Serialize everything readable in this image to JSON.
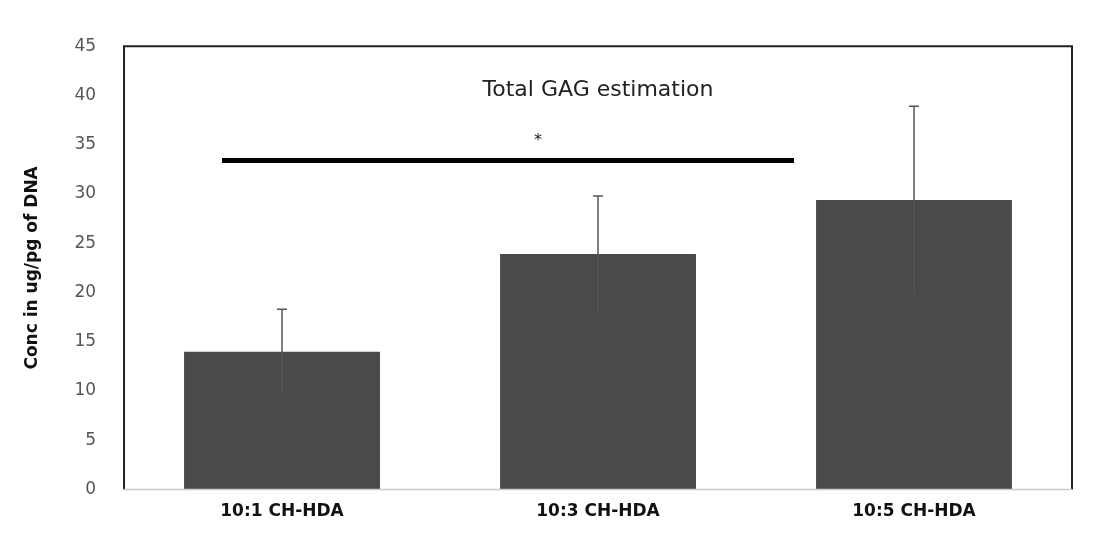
{
  "chart_data": {
    "type": "bar",
    "title": "Total GAG estimation",
    "ylabel": "Conc in ug/pg of DNA",
    "categories": [
      "10:1 CH-HDA",
      "10:3 CH-HDA",
      "10:5 CH-HDA"
    ],
    "values": [
      14.0,
      23.9,
      29.4
    ],
    "errors": [
      4.3,
      5.9,
      9.5
    ],
    "color": "#4a4a4a",
    "ylim": [
      0,
      45
    ],
    "yticks": [
      0,
      5,
      10,
      15,
      20,
      25,
      30,
      35,
      40,
      45
    ],
    "grid": false,
    "annotations": [
      "*"
    ]
  }
}
